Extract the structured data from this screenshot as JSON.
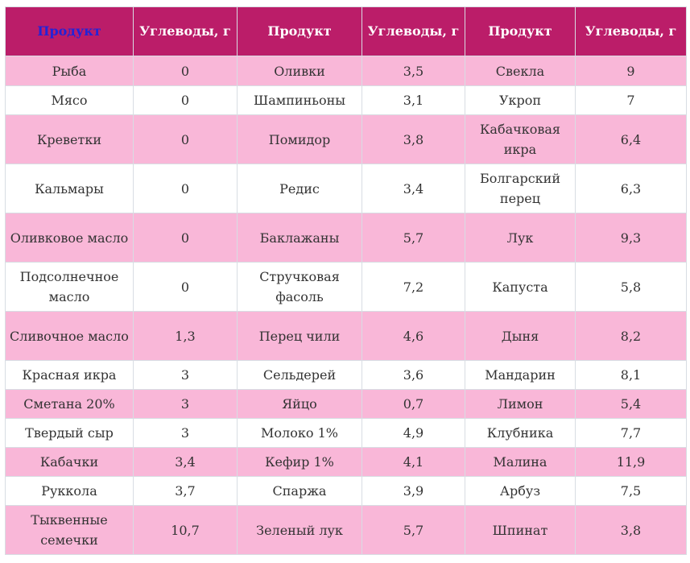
{
  "table": {
    "headers": [
      "Продукт",
      "Углеводы, г",
      "Продукт",
      "Углеводы, г",
      "Продукт",
      "Углеводы, г"
    ],
    "rows": [
      [
        "Рыба",
        "0",
        "Оливки",
        "3,5",
        "Свекла",
        "9"
      ],
      [
        "Мясо",
        "0",
        "Шампиньоны",
        "3,1",
        "Укроп",
        "7"
      ],
      [
        "Креветки",
        "0",
        "Помидор",
        "3,8",
        "Кабачковая икра",
        "6,4"
      ],
      [
        "Кальмары",
        "0",
        "Редис",
        "3,4",
        "Болгарский перец",
        "6,3"
      ],
      [
        "Оливковое масло",
        "0",
        "Баклажаны",
        "5,7",
        "Лук",
        "9,3"
      ],
      [
        "Подсолнечное масло",
        "0",
        "Стручковая фасоль",
        "7,2",
        "Капуста",
        "5,8"
      ],
      [
        "Сливочное масло",
        "1,3",
        "Перец чили",
        "4,6",
        "Дыня",
        "8,2"
      ],
      [
        "Красная икра",
        "3",
        "Сельдерей",
        "3,6",
        "Мандарин",
        "8,1"
      ],
      [
        "Сметана 20%",
        "3",
        "Яйцо",
        "0,7",
        "Лимон",
        "5,4"
      ],
      [
        "Твердый сыр",
        "3",
        "Молоко 1%",
        "4,9",
        "Клубника",
        "7,7"
      ],
      [
        "Кабачки",
        "3,4",
        "Кефир 1%",
        "4,1",
        "Малина",
        "11,9"
      ],
      [
        "Руккола",
        "3,7",
        "Спаржа",
        "3,9",
        "Арбуз",
        "7,5"
      ],
      [
        "Тыквенные семечки",
        "10,7",
        "Зеленый лук",
        "5,7",
        "Шпинат",
        "3,8"
      ]
    ]
  }
}
